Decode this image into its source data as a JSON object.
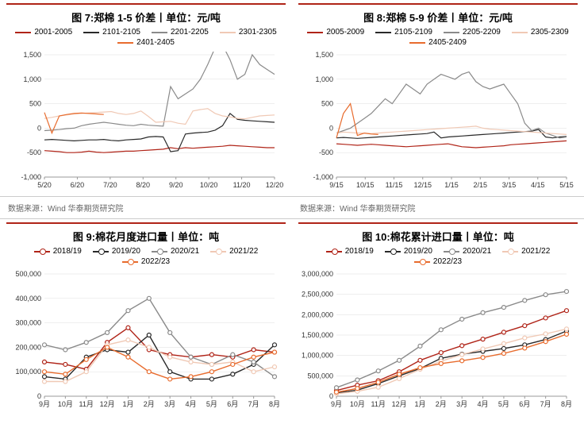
{
  "source_label": "数据来源：Wind 华泰期货研究院",
  "chart7": {
    "type": "line",
    "title": "图 7:郑棉 1-5 价差丨单位：元/吨",
    "x_labels": [
      "5/20",
      "6/20",
      "7/20",
      "8/20",
      "9/20",
      "10/20",
      "11/20",
      "12/20"
    ],
    "ylim": [
      -1000,
      1500
    ],
    "ytick_step": 500,
    "background_color": "#ffffff",
    "grid_color": "#dddddd",
    "series": [
      {
        "name": "2001-2005",
        "color": "#b02418",
        "width": 1.2,
        "data": [
          -460,
          -470,
          -480,
          -500,
          -500,
          -490,
          -470,
          -490,
          -500,
          -490,
          -480,
          -470,
          -470,
          -460,
          -450,
          -440,
          -430,
          -400,
          -420,
          -400,
          -410,
          -400,
          -390,
          -380,
          -370,
          -350,
          -360,
          -370,
          -380,
          -390,
          -400,
          -400
        ]
      },
      {
        "name": "2101-2105",
        "color": "#2a2a2a",
        "width": 1.2,
        "data": [
          -240,
          -230,
          -240,
          -250,
          -260,
          -250,
          -240,
          -240,
          -230,
          -250,
          -260,
          -240,
          -230,
          -220,
          -180,
          -170,
          -180,
          -480,
          -460,
          -120,
          -100,
          -90,
          -80,
          -40,
          50,
          300,
          180,
          160,
          150,
          140,
          130,
          120
        ]
      },
      {
        "name": "2201-2205",
        "color": "#8a8a8a",
        "width": 1.2,
        "data": [
          -50,
          -40,
          -30,
          -10,
          0,
          50,
          80,
          100,
          120,
          100,
          80,
          60,
          50,
          80,
          60,
          50,
          40,
          850,
          600,
          700,
          800,
          1000,
          1300,
          1650,
          1700,
          1400,
          1000,
          1100,
          1500,
          1300,
          1200,
          1100
        ]
      },
      {
        "name": "2301-2305",
        "color": "#f0c9b5",
        "width": 1.2,
        "data": [
          200,
          220,
          250,
          270,
          290,
          300,
          310,
          320,
          330,
          340,
          300,
          280,
          300,
          350,
          240,
          120,
          130,
          140,
          100,
          80,
          350,
          380,
          400,
          300,
          250,
          230,
          200,
          190,
          220,
          250,
          260,
          270
        ]
      },
      {
        "name": "2401-2405",
        "color": "#e86c2e",
        "width": 1.2,
        "data": [
          320,
          -100,
          250,
          280,
          300,
          310,
          300,
          290,
          280,
          null,
          null,
          null,
          null,
          null,
          null,
          null,
          null,
          null,
          null,
          null,
          null,
          null,
          null,
          null,
          null,
          null,
          null,
          null,
          null,
          null,
          null,
          null
        ]
      }
    ]
  },
  "chart8": {
    "type": "line",
    "title": "图 8:郑棉 5-9 价差丨单位：元/吨",
    "x_labels": [
      "9/15",
      "10/15",
      "11/15",
      "12/15",
      "1/15",
      "2/15",
      "3/15",
      "4/15",
      "5/15"
    ],
    "ylim": [
      -1000,
      1500
    ],
    "ytick_step": 500,
    "background_color": "#ffffff",
    "grid_color": "#dddddd",
    "series": [
      {
        "name": "2005-2009",
        "color": "#b02418",
        "width": 1.2,
        "data": [
          -320,
          -330,
          -340,
          -350,
          -340,
          -330,
          -340,
          -350,
          -360,
          -370,
          -380,
          -370,
          -360,
          -350,
          -340,
          -330,
          -320,
          -350,
          -380,
          -390,
          -400,
          -390,
          -380,
          -370,
          -360,
          -340,
          -330,
          -320,
          -310,
          -300,
          -290,
          -280,
          -270,
          -260
        ]
      },
      {
        "name": "2105-2109",
        "color": "#2a2a2a",
        "width": 1.2,
        "data": [
          -200,
          -190,
          -200,
          -210,
          -200,
          -190,
          -180,
          -170,
          -160,
          -150,
          -140,
          -130,
          -120,
          -110,
          -80,
          -200,
          -180,
          -170,
          -160,
          -150,
          -140,
          -130,
          -120,
          -110,
          -100,
          -90,
          -80,
          -70,
          -60,
          -30,
          -180,
          -200,
          -180,
          -170
        ]
      },
      {
        "name": "2205-2209",
        "color": "#8a8a8a",
        "width": 1.2,
        "data": [
          -100,
          -50,
          0,
          100,
          200,
          300,
          450,
          600,
          500,
          700,
          900,
          800,
          700,
          900,
          1000,
          1100,
          1050,
          1000,
          1100,
          1150,
          950,
          850,
          800,
          850,
          900,
          700,
          500,
          100,
          -50,
          0,
          -100,
          -150,
          -200,
          -180
        ]
      },
      {
        "name": "2305-2309",
        "color": "#f0c9b5",
        "width": 1.2,
        "data": [
          -100,
          -80,
          -90,
          -100,
          -100,
          -110,
          -100,
          -90,
          -80,
          -70,
          -60,
          -50,
          -40,
          -30,
          -20,
          -10,
          0,
          10,
          20,
          30,
          40,
          0,
          -20,
          -30,
          -40,
          -50,
          -60,
          -70,
          -80,
          -90,
          -100,
          -110,
          -120,
          -130
        ]
      },
      {
        "name": "2405-2409",
        "color": "#e86c2e",
        "width": 1.2,
        "data": [
          -200,
          300,
          500,
          -150,
          -100,
          -120,
          -130,
          null,
          null,
          null,
          null,
          null,
          null,
          null,
          null,
          null,
          null,
          null,
          null,
          null,
          null,
          null,
          null,
          null,
          null,
          null,
          null,
          null,
          null,
          null,
          null,
          null,
          null,
          null
        ]
      }
    ]
  },
  "chart9": {
    "type": "line-marker",
    "title": "图 9:棉花月度进口量丨单位：吨",
    "x_labels": [
      "9月",
      "10月",
      "11月",
      "12月",
      "1月",
      "2月",
      "3月",
      "4月",
      "5月",
      "6月",
      "7月",
      "8月"
    ],
    "ylim": [
      0,
      500000
    ],
    "ytick_step": 100000,
    "background_color": "#ffffff",
    "grid_color": "#dddddd",
    "series": [
      {
        "name": "2018/19",
        "color": "#b02418",
        "data": [
          140000,
          130000,
          110000,
          220000,
          280000,
          190000,
          170000,
          160000,
          170000,
          160000,
          190000,
          180000
        ]
      },
      {
        "name": "2019/20",
        "color": "#2a2a2a",
        "data": [
          80000,
          70000,
          160000,
          190000,
          180000,
          250000,
          100000,
          70000,
          70000,
          90000,
          130000,
          210000
        ]
      },
      {
        "name": "2020/21",
        "color": "#8a8a8a",
        "data": [
          210000,
          190000,
          220000,
          260000,
          350000,
          400000,
          260000,
          160000,
          130000,
          170000,
          140000,
          80000
        ]
      },
      {
        "name": "2021/22",
        "color": "#f0c9b5",
        "data": [
          60000,
          60000,
          100000,
          210000,
          230000,
          200000,
          160000,
          140000,
          130000,
          140000,
          100000,
          120000
        ]
      },
      {
        "name": "2022/23",
        "color": "#e86c2e",
        "data": [
          100000,
          90000,
          150000,
          200000,
          160000,
          100000,
          70000,
          80000,
          100000,
          130000,
          160000,
          180000
        ]
      }
    ]
  },
  "chart10": {
    "type": "line-marker",
    "title": "图 10:棉花累计进口量丨单位：吨",
    "x_labels": [
      "9月",
      "10月",
      "11月",
      "12月",
      "1月",
      "2月",
      "3月",
      "4月",
      "5月",
      "6月",
      "7月",
      "8月"
    ],
    "ylim": [
      0,
      3000000
    ],
    "ytick_step": 500000,
    "background_color": "#ffffff",
    "grid_color": "#dddddd",
    "series": [
      {
        "name": "2018/19",
        "color": "#b02418",
        "data": [
          140000,
          270000,
          380000,
          600000,
          880000,
          1070000,
          1240000,
          1400000,
          1570000,
          1730000,
          1920000,
          2100000
        ]
      },
      {
        "name": "2019/20",
        "color": "#2a2a2a",
        "data": [
          80000,
          150000,
          310000,
          500000,
          680000,
          930000,
          1030000,
          1100000,
          1170000,
          1260000,
          1390000,
          1600000
        ]
      },
      {
        "name": "2020/21",
        "color": "#8a8a8a",
        "data": [
          210000,
          400000,
          620000,
          880000,
          1230000,
          1630000,
          1890000,
          2050000,
          2180000,
          2350000,
          2490000,
          2570000
        ]
      },
      {
        "name": "2021/22",
        "color": "#f0c9b5",
        "data": [
          60000,
          120000,
          220000,
          430000,
          660000,
          860000,
          1020000,
          1160000,
          1290000,
          1430000,
          1530000,
          1650000
        ]
      },
      {
        "name": "2022/23",
        "color": "#e86c2e",
        "data": [
          100000,
          190000,
          340000,
          540000,
          700000,
          800000,
          870000,
          950000,
          1050000,
          1180000,
          1340000,
          1520000
        ]
      }
    ]
  }
}
